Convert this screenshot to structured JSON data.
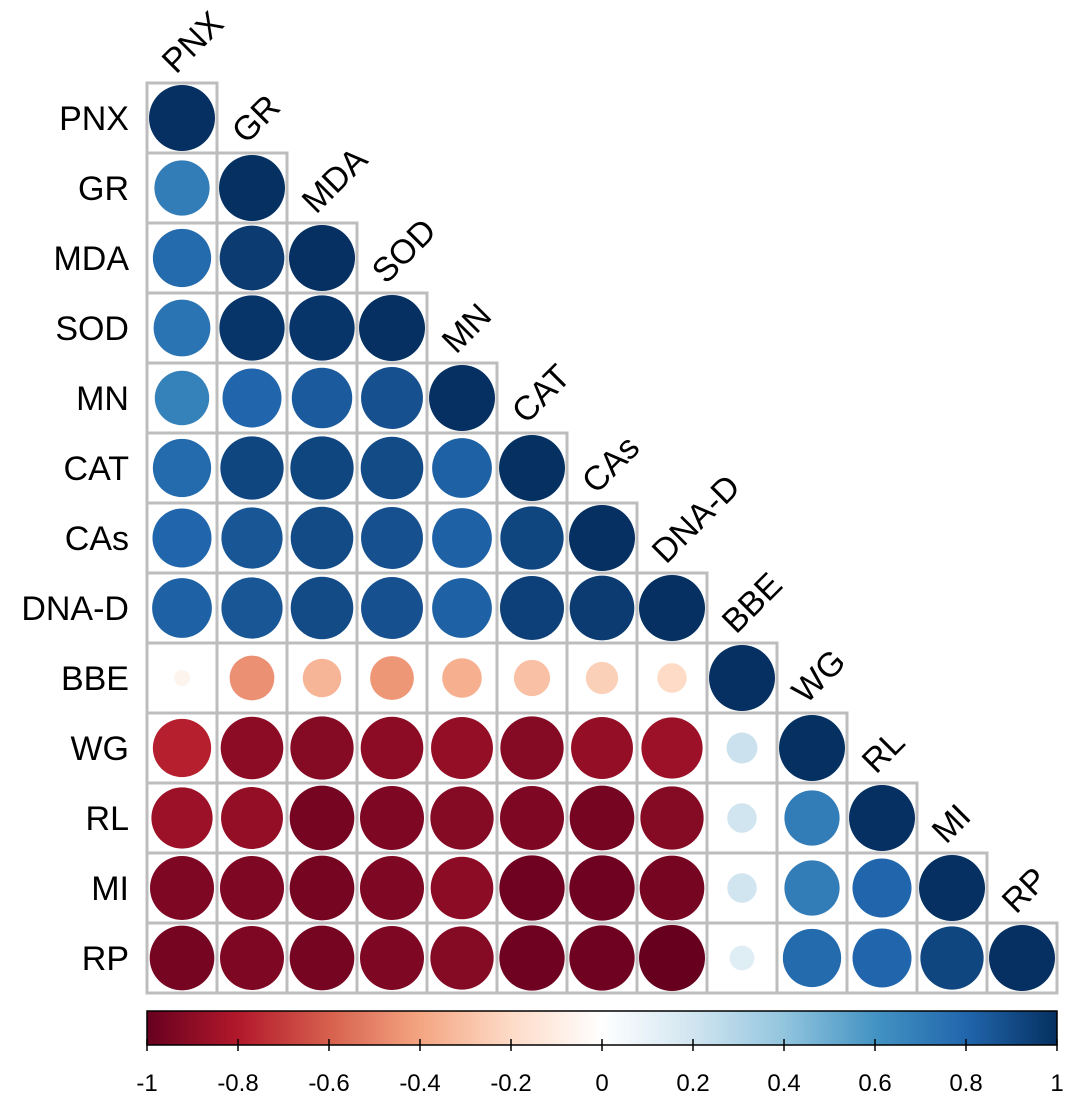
{
  "chart_data": {
    "type": "heatmap",
    "variables": [
      "PNX",
      "GR",
      "MDA",
      "SOD",
      "MN",
      "CAT",
      "CAs",
      "DNA-D",
      "BBE",
      "WG",
      "RL",
      "MI",
      "RP"
    ],
    "lower_triangle": [
      [
        1
      ],
      [
        0.7,
        1
      ],
      [
        0.78,
        0.96,
        1
      ],
      [
        0.74,
        0.98,
        0.98,
        1
      ],
      [
        0.68,
        0.8,
        0.84,
        0.88,
        1
      ],
      [
        0.78,
        0.92,
        0.92,
        0.9,
        0.82,
        1
      ],
      [
        0.8,
        0.86,
        0.9,
        0.88,
        0.82,
        0.92,
        1
      ],
      [
        0.82,
        0.86,
        0.9,
        0.88,
        0.82,
        0.94,
        0.96,
        1
      ],
      [
        -0.06,
        -0.46,
        -0.34,
        -0.44,
        -0.36,
        -0.3,
        -0.24,
        -0.2,
        1
      ],
      [
        -0.78,
        -0.9,
        -0.92,
        -0.9,
        -0.88,
        -0.92,
        -0.88,
        -0.86,
        0.22,
        1
      ],
      [
        -0.86,
        -0.88,
        -0.96,
        -0.94,
        -0.92,
        -0.94,
        -0.96,
        -0.92,
        0.2,
        0.7,
        1
      ],
      [
        -0.94,
        -0.94,
        -0.96,
        -0.94,
        -0.9,
        -0.98,
        -0.98,
        -0.96,
        0.2,
        0.7,
        0.8,
        1
      ],
      [
        -0.96,
        -0.94,
        -0.96,
        -0.94,
        -0.92,
        -0.98,
        -0.98,
        -1.0,
        0.14,
        0.78,
        0.8,
        0.92,
        1
      ]
    ],
    "colorbar": {
      "range": [
        -1,
        1
      ],
      "ticks": [
        "-1",
        "-0.8",
        "-0.6",
        "-0.4",
        "-0.2",
        "0",
        "0.2",
        "0.4",
        "0.6",
        "0.8",
        "1"
      ]
    },
    "title": "",
    "xlabel": "",
    "ylabel": ""
  },
  "colors": {
    "negative_end": "#67001F",
    "neg_mid": "#B2182B",
    "neg_light": "#F4A582",
    "neutral": "#FFFFFF",
    "pos_light": "#92C5DE",
    "pos_mid": "#2166AC",
    "positive_end": "#053061",
    "grid": "#BDBDBD"
  }
}
